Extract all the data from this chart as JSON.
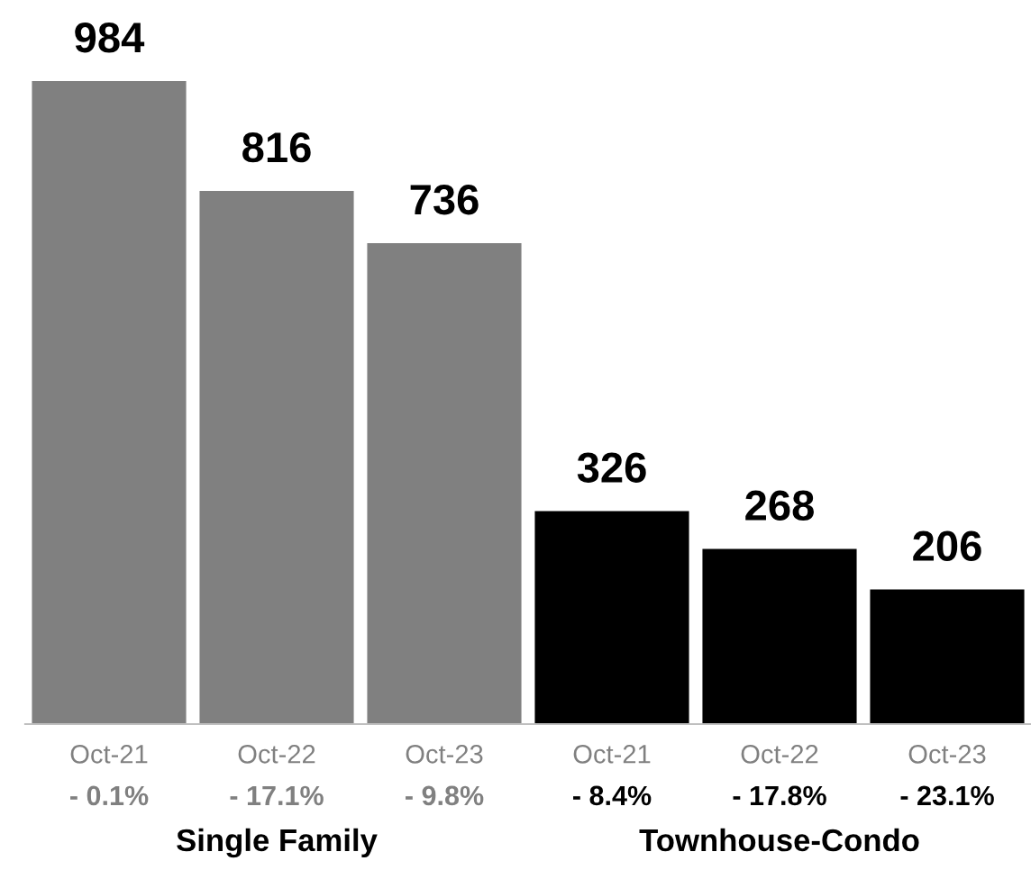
{
  "chart_data": {
    "type": "bar",
    "categories": [
      "Oct-21",
      "Oct-22",
      "Oct-23",
      "Oct-21",
      "Oct-22",
      "Oct-23"
    ],
    "values": [
      984,
      816,
      736,
      326,
      268,
      206
    ],
    "colors": [
      "#808080",
      "#808080",
      "#808080",
      "#000000",
      "#000000",
      "#000000"
    ],
    "data_labels": true,
    "annotations": [
      "- 0.1%",
      "- 17.1%",
      "- 9.8%",
      "- 8.4%",
      "- 17.8%",
      "- 23.1%",
      "Single Family",
      "Townhouse-Condo"
    ]
  }
}
